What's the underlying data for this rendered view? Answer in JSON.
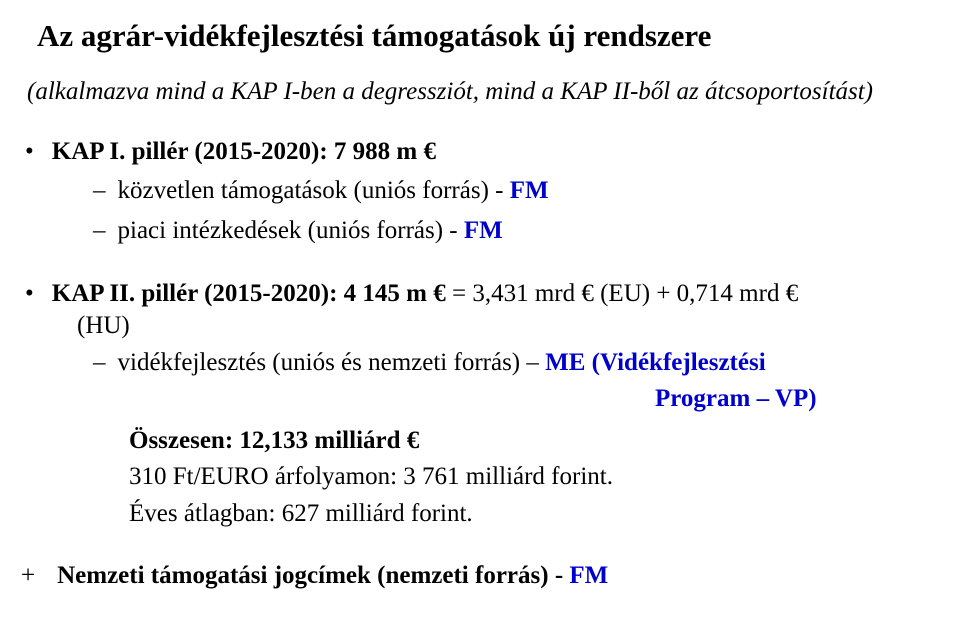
{
  "title": "Az agrár-vidékfejlesztési támogatások új rendszere",
  "subtitle": "(alkalmazva mind a KAP I-ben a degressziót, mind a KAP II-ből az átcsoportosítást)",
  "bullet1": {
    "label_prefix": "KAP I. pillér (2015-2020):",
    "amount": "  7 988 m €",
    "sub1_text": "közvetlen támogatások (uniós forrás)  - ",
    "sub1_fm": "FM",
    "sub2_text": "piaci intézkedések (uniós forrás) - ",
    "sub2_fm": "FM"
  },
  "bullet2": {
    "label_prefix": "KAP II. pillér (2015-2020):",
    "amount": "  4 145 m € ",
    "detail": "= 3,431 mrd € (EU) + 0,714  mrd €",
    "hu": "(HU)",
    "sub_text": "vidékfejlesztés (uniós és nemzeti forrás) – ",
    "sub_me": "ME (Vidékfejlesztési",
    "program_vp": "Program – VP)"
  },
  "summary": {
    "line1_bold": "Összesen: 12,133 milliárd €",
    "line2": "310 Ft/EURO árfolyamon:  3 761 milliárd forint.",
    "line3": "Éves átlagban: 627 milliárd forint."
  },
  "plus_line": {
    "marker": "+",
    "text": "Nemzeti támogatási jogcímek (nemzeti forrás) - ",
    "fm": "FM"
  }
}
